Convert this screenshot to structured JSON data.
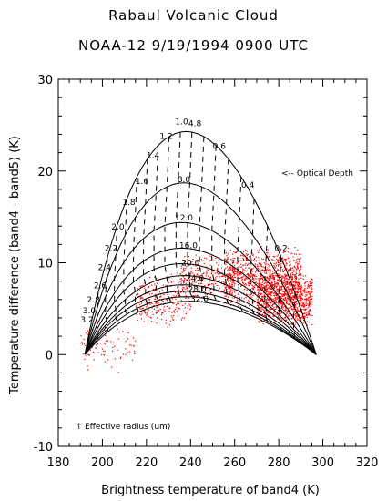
{
  "chart_data": {
    "type": "scatter",
    "title": "Rabaul Volcanic Cloud",
    "subtitle": "NOAA-12 9/19/1994 0900 UTC",
    "xlabel": "Brightness temperature of band4 (K)",
    "ylabel": "Temperature difference (band4 - band5) (K)",
    "xlim": [
      180,
      320
    ],
    "ylim": [
      -10,
      30
    ],
    "xticks": [
      180,
      200,
      220,
      240,
      260,
      280,
      300,
      320
    ],
    "yticks": [
      -10,
      0,
      10,
      20,
      30
    ],
    "grid": false,
    "colors": {
      "observations": "#ff0000",
      "curves": "#000000"
    },
    "model_curves": {
      "start": [
        192,
        0
      ],
      "end": [
        297,
        0
      ],
      "effective_radius_curves": [
        {
          "label": "1.0",
          "peak": [
            238,
            24.3
          ]
        },
        {
          "label": "1.6",
          "peak": [
            237,
            18.7
          ]
        },
        {
          "label": "2.0",
          "peak": [
            236,
            14.4
          ]
        },
        {
          "label": "2.2",
          "peak": [
            236,
            11.6
          ]
        },
        {
          "label": "2.4",
          "peak": [
            236,
            9.9
          ]
        },
        {
          "label": "2.6",
          "peak": [
            237,
            8.6
          ]
        },
        {
          "label": "2.8",
          "peak": [
            237,
            7.6
          ]
        },
        {
          "label": "3.0",
          "peak": [
            237,
            6.9
          ]
        },
        {
          "label": "3.2",
          "peak": [
            238,
            6.3
          ]
        },
        {
          "label": "",
          "peak": [
            239,
            5.8
          ]
        }
      ],
      "radius_labels": [
        {
          "text": "1.0",
          "x": 236,
          "y": 25.1
        },
        {
          "text": "1.2",
          "x": 229,
          "y": 23.5
        },
        {
          "text": "1.4",
          "x": 223,
          "y": 21.4
        },
        {
          "text": "1.6",
          "x": 218,
          "y": 18.6
        },
        {
          "text": "1.8",
          "x": 212,
          "y": 16.3
        },
        {
          "text": "2.0",
          "x": 207,
          "y": 13.6
        },
        {
          "text": "2.2",
          "x": 204,
          "y": 11.3
        },
        {
          "text": "2.4",
          "x": 201,
          "y": 9.2
        },
        {
          "text": "2.6",
          "x": 199,
          "y": 7.2
        },
        {
          "text": "2.8",
          "x": 196,
          "y": 5.7
        },
        {
          "text": "3.0",
          "x": 194,
          "y": 4.5
        },
        {
          "text": "3.2",
          "x": 193,
          "y": 3.5
        }
      ],
      "optical_depth_labels": [
        {
          "text": "4.8",
          "x": 242,
          "y": 24.9
        },
        {
          "text": "0.6",
          "x": 253,
          "y": 22.4
        },
        {
          "text": "0.4",
          "x": 266,
          "y": 18.2
        },
        {
          "text": "0.2",
          "x": 281,
          "y": 11.3
        },
        {
          "text": "8.0",
          "x": 237,
          "y": 18.8
        },
        {
          "text": "12.0",
          "x": 237,
          "y": 14.6
        },
        {
          "text": "16.0",
          "x": 239,
          "y": 11.6
        },
        {
          "text": "20.0",
          "x": 240,
          "y": 9.7
        },
        {
          "text": "24.0",
          "x": 242,
          "y": 8.0
        },
        {
          "text": "28.0",
          "x": 243,
          "y": 6.8
        },
        {
          "text": "32.0",
          "x": 244,
          "y": 5.8
        }
      ]
    },
    "annotations": {
      "optical_depth": "<-- Optical Depth",
      "effective_radius": "Effective radius (um)"
    },
    "observation_clusters": [
      {
        "x": [
          255,
          290
        ],
        "y": [
          5,
          12
        ],
        "density": "high"
      },
      {
        "x": [
          270,
          295
        ],
        "y": [
          3,
          9
        ],
        "density": "high"
      },
      {
        "x": [
          235,
          260
        ],
        "y": [
          6,
          11
        ],
        "density": "medium"
      },
      {
        "x": [
          215,
          240
        ],
        "y": [
          3,
          9
        ],
        "density": "medium"
      },
      {
        "x": [
          190,
          215
        ],
        "y": [
          -2,
          4
        ],
        "density": "low"
      }
    ]
  }
}
